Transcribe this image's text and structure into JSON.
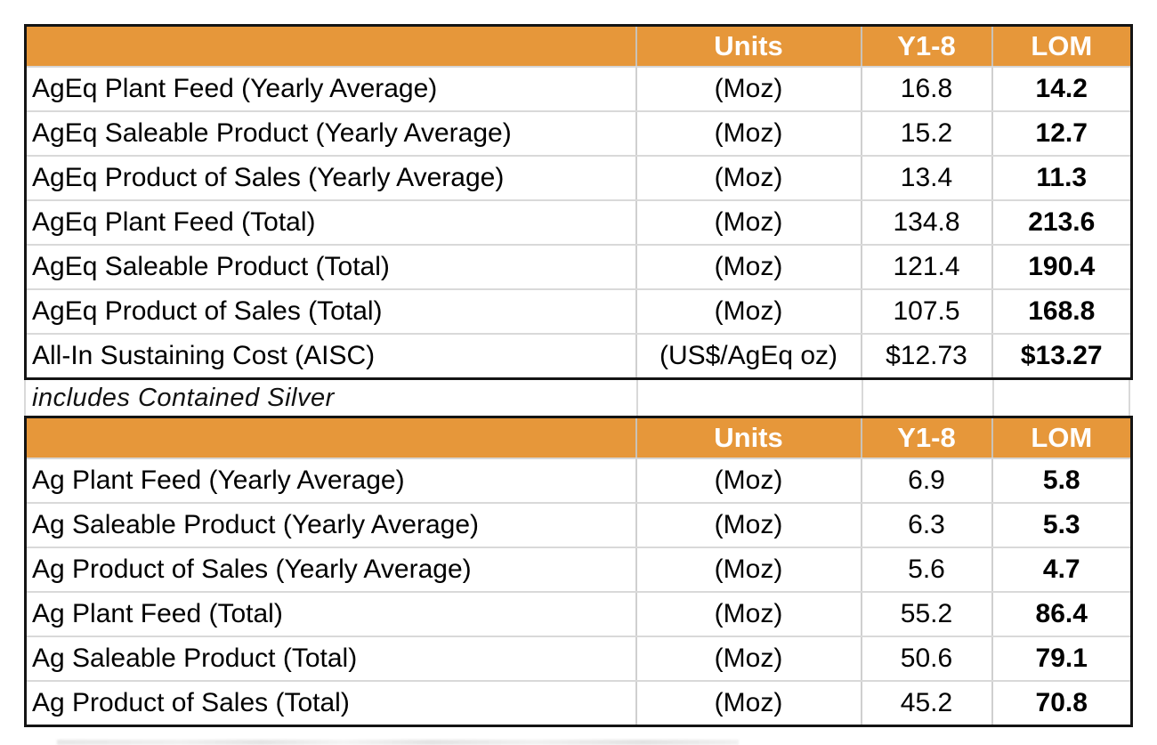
{
  "page": {
    "accent_color": "#E6973A",
    "border_color": "#141414",
    "grid_line_color": "#d9d9d9"
  },
  "ageq_table": {
    "headers": {
      "label": "",
      "units": "Units",
      "y18": "Y1-8",
      "lom": "LOM"
    },
    "rows": [
      {
        "label": "AgEq Plant Feed (Yearly Average)",
        "units": "(Moz)",
        "y18": "16.8",
        "lom": "14.2"
      },
      {
        "label": "AgEq Saleable Product (Yearly Average)",
        "units": "(Moz)",
        "y18": "15.2",
        "lom": "12.7"
      },
      {
        "label": "AgEq Product of Sales (Yearly Average)",
        "units": "(Moz)",
        "y18": "13.4",
        "lom": "11.3"
      },
      {
        "label": "AgEq Plant Feed (Total)",
        "units": "(Moz)",
        "y18": "134.8",
        "lom": "213.6"
      },
      {
        "label": "AgEq Saleable Product (Total)",
        "units": "(Moz)",
        "y18": "121.4",
        "lom": "190.4"
      },
      {
        "label": "AgEq Product of Sales (Total)",
        "units": "(Moz)",
        "y18": "107.5",
        "lom": "168.8"
      },
      {
        "label": "All-In Sustaining Cost (AISC)",
        "units": "(US$/AgEq oz)",
        "y18": "$12.73",
        "lom": "$13.27"
      }
    ]
  },
  "note": {
    "text": "includes Contained Silver"
  },
  "ag_table": {
    "headers": {
      "label": "",
      "units": "Units",
      "y18": "Y1-8",
      "lom": "LOM"
    },
    "rows": [
      {
        "label": "Ag Plant Feed (Yearly Average)",
        "units": "(Moz)",
        "y18": "6.9",
        "lom": "5.8"
      },
      {
        "label": "Ag Saleable Product (Yearly Average)",
        "units": "(Moz)",
        "y18": "6.3",
        "lom": "5.3"
      },
      {
        "label": "Ag Product of Sales (Yearly Average)",
        "units": "(Moz)",
        "y18": "5.6",
        "lom": "4.7"
      },
      {
        "label": "Ag Plant Feed (Total)",
        "units": "(Moz)",
        "y18": "55.2",
        "lom": "86.4"
      },
      {
        "label": "Ag Saleable Product (Total)",
        "units": "(Moz)",
        "y18": "50.6",
        "lom": "79.1"
      },
      {
        "label": "Ag Product of Sales (Total)",
        "units": "(Moz)",
        "y18": "45.2",
        "lom": "70.8"
      }
    ]
  }
}
